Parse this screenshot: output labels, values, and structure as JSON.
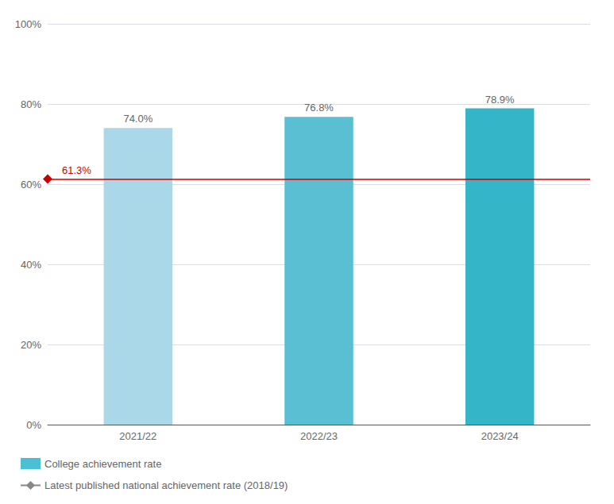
{
  "chart_data": {
    "type": "bar",
    "categories": [
      "2021/22",
      "2022/23",
      "2023/24"
    ],
    "series": [
      {
        "name": "College achievement rate",
        "type": "bar",
        "color": "#4bbfd4",
        "colors": [
          "#aad8e8",
          "#5bbfd4",
          "#35b5c8"
        ],
        "values": [
          74.0,
          76.8,
          78.9
        ],
        "value_labels": [
          "74.0%",
          "76.8%",
          "78.9%"
        ]
      }
    ],
    "reference_line": {
      "name": "Latest published national achievement rate (2018/19)",
      "value": 61.3,
      "label": "61.3%",
      "color": "#cc0000",
      "legend_color": "#888888",
      "marker": "diamond"
    },
    "data_labels": true,
    "ylim": [
      0,
      100
    ],
    "yticks": [
      {
        "value": 0,
        "label": "0%"
      },
      {
        "value": 20,
        "label": "20%"
      },
      {
        "value": 40,
        "label": "40%"
      },
      {
        "value": 60,
        "label": "60%"
      },
      {
        "value": 80,
        "label": "80%"
      },
      {
        "value": 100,
        "label": "100%"
      }
    ],
    "grid": true,
    "legend": "lower left"
  }
}
